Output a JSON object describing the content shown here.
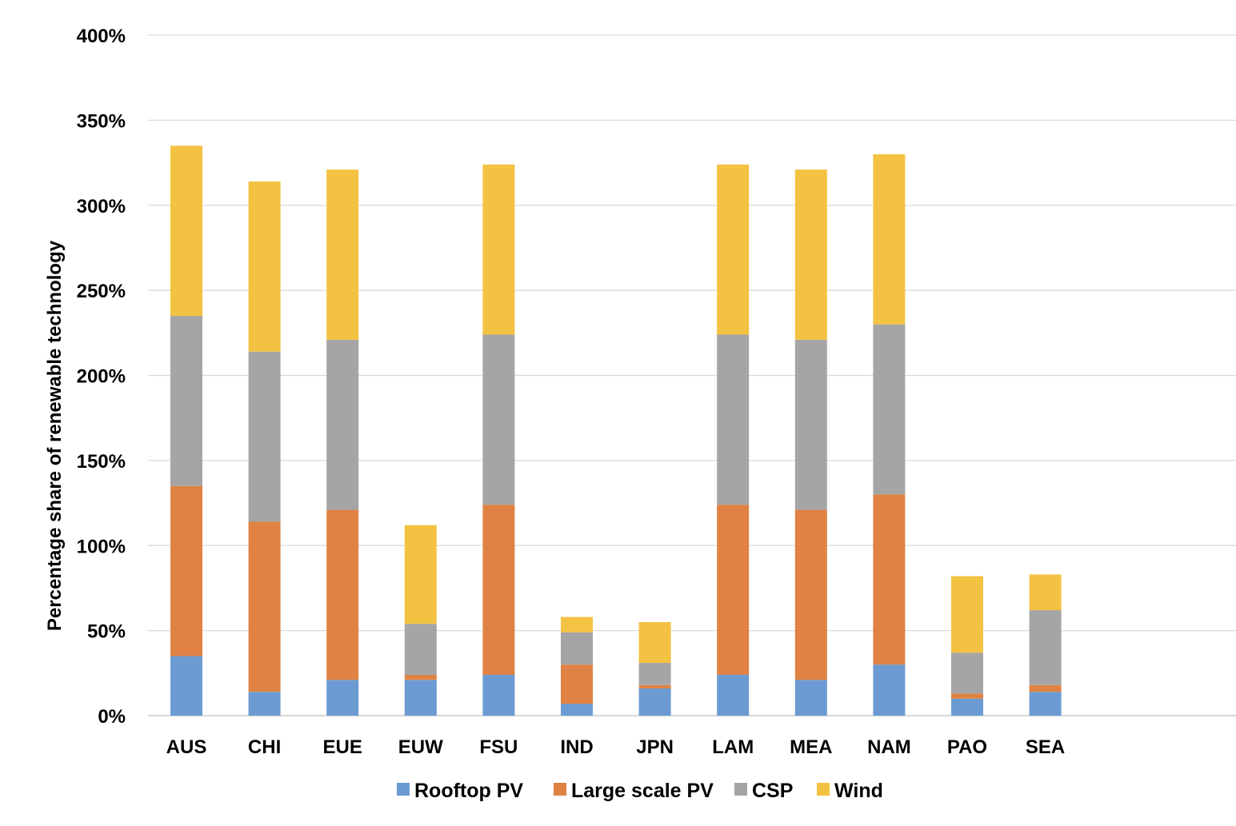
{
  "chart_data": {
    "type": "bar",
    "stacked": true,
    "categories": [
      "AUS",
      "CHI",
      "EUE",
      "EUW",
      "FSU",
      "IND",
      "JPN",
      "LAM",
      "MEA",
      "NAM",
      "PAO",
      "SEA"
    ],
    "series": [
      {
        "name": "Rooftop PV",
        "color": "#6b9bd2",
        "values": [
          35,
          14,
          21,
          21,
          24,
          7,
          16,
          24,
          21,
          30,
          10,
          14
        ]
      },
      {
        "name": "Large scale PV",
        "color": "#df8244",
        "values": [
          100,
          100,
          100,
          3,
          100,
          23,
          2,
          100,
          100,
          100,
          3,
          4
        ]
      },
      {
        "name": "CSP",
        "color": "#a5a5a5",
        "values": [
          100,
          100,
          100,
          30,
          100,
          19,
          13,
          100,
          100,
          100,
          24,
          44
        ]
      },
      {
        "name": "Wind",
        "color": "#f4c242",
        "values": [
          100,
          100,
          100,
          58,
          100,
          9,
          24,
          100,
          100,
          100,
          45,
          21
        ]
      }
    ],
    "ylabel": "Percentage share of renewable technology",
    "xlabel": "",
    "ylim": [
      0,
      400
    ],
    "yticks": [
      0,
      50,
      100,
      150,
      200,
      250,
      300,
      350,
      400
    ],
    "ytick_labels": [
      "0%",
      "50%",
      "100%",
      "150%",
      "200%",
      "250%",
      "300%",
      "350%",
      "400%"
    ],
    "grid": true,
    "legend_position": "bottom"
  }
}
